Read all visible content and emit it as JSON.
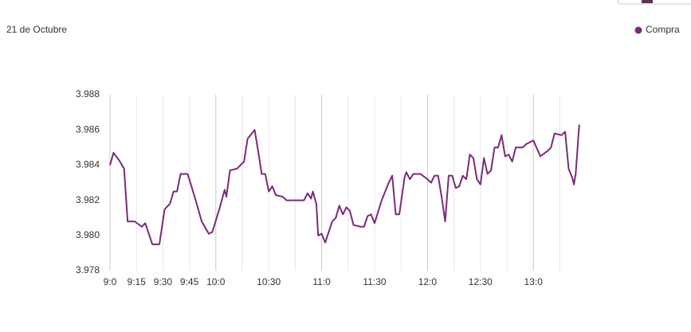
{
  "chart_data": {
    "type": "line",
    "title": "21 de Octubre",
    "x": [
      540,
      542,
      545,
      548,
      550,
      554,
      558,
      560,
      564,
      568,
      571,
      574,
      576,
      578,
      580,
      584,
      588,
      592,
      596,
      598,
      602,
      605,
      606,
      608,
      612,
      616,
      618,
      622,
      624,
      626,
      628,
      630,
      632,
      634,
      638,
      640,
      646,
      650,
      652,
      654,
      655,
      657,
      658,
      660,
      662,
      666,
      668,
      670,
      672,
      674,
      676,
      678,
      682,
      684,
      686,
      688,
      690,
      694,
      698,
      700,
      702,
      704,
      707,
      708,
      710,
      712,
      716,
      720,
      722,
      724,
      726,
      728,
      730,
      732,
      734,
      736,
      738,
      740,
      742,
      744,
      746,
      748,
      750,
      752,
      754,
      756,
      758,
      760,
      762,
      764,
      766,
      768,
      770,
      774,
      776,
      778,
      780,
      784,
      788,
      790,
      792,
      796,
      798,
      800,
      802,
      803,
      804,
      806
    ],
    "series": [
      {
        "name": "Compra",
        "color": "#7a2b78",
        "values": [
          3.984,
          3.9847,
          3.9843,
          3.9838,
          3.9808,
          3.9808,
          3.9805,
          3.9807,
          3.9795,
          3.9795,
          3.9815,
          3.9818,
          3.9825,
          3.9825,
          3.9835,
          3.9835,
          3.9822,
          3.9808,
          3.9801,
          3.9802,
          3.9815,
          3.9826,
          3.9822,
          3.9837,
          3.9838,
          3.9842,
          3.9855,
          3.986,
          3.9848,
          3.9835,
          3.9835,
          3.9825,
          3.9828,
          3.9823,
          3.9822,
          3.982,
          3.982,
          3.982,
          3.9824,
          3.9821,
          3.9825,
          3.9818,
          3.98,
          3.9801,
          3.9796,
          3.9808,
          3.981,
          3.9817,
          3.9812,
          3.9816,
          3.9814,
          3.9806,
          3.9805,
          3.9805,
          3.9811,
          3.9812,
          3.9807,
          3.982,
          3.983,
          3.9834,
          3.9812,
          3.9812,
          3.9833,
          3.9836,
          3.9832,
          3.9835,
          3.9835,
          3.9832,
          3.983,
          3.9834,
          3.9834,
          3.9822,
          3.9808,
          3.9834,
          3.9834,
          3.9827,
          3.9828,
          3.9834,
          3.9832,
          3.9846,
          3.9844,
          3.9832,
          3.9829,
          3.9844,
          3.9835,
          3.9837,
          3.985,
          3.985,
          3.9857,
          3.9845,
          3.9846,
          3.9842,
          3.985,
          3.985,
          3.9852,
          3.9853,
          3.9854,
          3.9845,
          3.9848,
          3.985,
          3.9858,
          3.9857,
          3.9859,
          3.9838,
          3.9833,
          3.9829,
          3.9835,
          3.9863
        ]
      }
    ],
    "xlim": [
      540,
      810
    ],
    "xticks": [
      {
        "value": 540,
        "label": "9:0"
      },
      {
        "value": 555,
        "label": "9:15"
      },
      {
        "value": 570,
        "label": "9:30"
      },
      {
        "value": 585,
        "label": "9:45"
      },
      {
        "value": 600,
        "label": "10:0"
      },
      {
        "value": 630,
        "label": "10:30"
      },
      {
        "value": 660,
        "label": "11:0"
      },
      {
        "value": 690,
        "label": "11:30"
      },
      {
        "value": 720,
        "label": "12:0"
      },
      {
        "value": 750,
        "label": "12:30"
      },
      {
        "value": 780,
        "label": "13:0"
      }
    ],
    "xminor": [
      615,
      645,
      675,
      705,
      735,
      765,
      795
    ],
    "ylim": [
      3.978,
      3.988
    ],
    "yticks": [
      3.978,
      {
        "value": 3.98,
        "label": "3.980"
      },
      3.982,
      3.984,
      3.986,
      3.988
    ],
    "grid": true,
    "legend": "top-right"
  }
}
